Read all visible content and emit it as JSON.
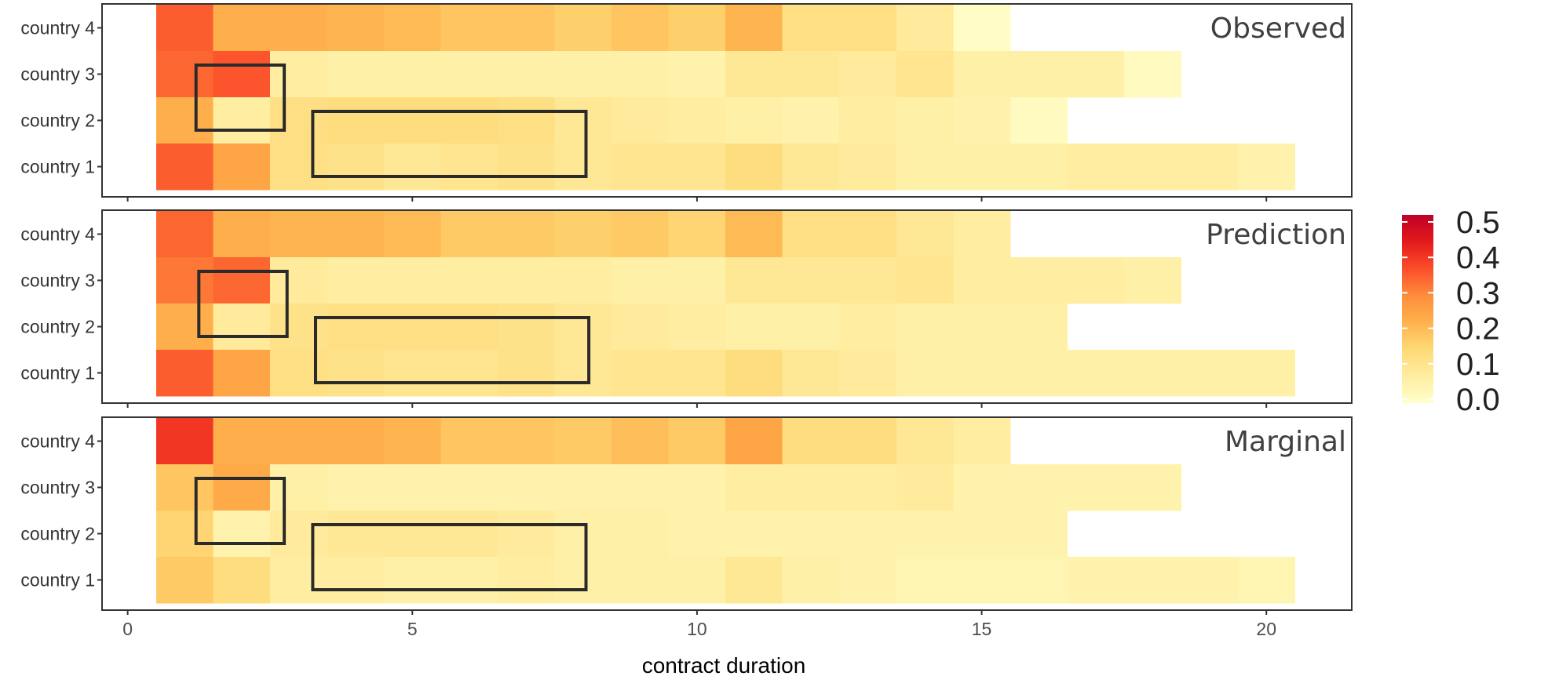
{
  "chart_data": {
    "type": "heatmap",
    "xlabel": "contract duration",
    "x_ticks": [
      0,
      5,
      10,
      15,
      20
    ],
    "xlim": [
      -0.45,
      21.5
    ],
    "y_categories": [
      "country 1",
      "country 2",
      "country 3",
      "country 4"
    ],
    "color_scale": {
      "palette": "YlOrRd",
      "min": 0.0,
      "max": 0.5,
      "ticks": [
        "0.0",
        "0.1",
        "0.2",
        "0.3",
        "0.4",
        "0.5"
      ],
      "stops": [
        "#ffffcc",
        "#ffeda0",
        "#fed976",
        "#feb24c",
        "#fd8d3c",
        "#fc4e2a",
        "#e31a1c",
        "#bd0026"
      ]
    },
    "panels": [
      {
        "title": "Observed",
        "rows": {
          "country 4": [
            0.34,
            0.22,
            0.22,
            0.21,
            0.2,
            0.18,
            0.18,
            0.16,
            0.18,
            0.16,
            0.21,
            0.12,
            0.12,
            0.08,
            0.01
          ],
          "country 3": [
            0.33,
            0.35,
            0.07,
            0.06,
            0.06,
            0.06,
            0.06,
            0.06,
            0.06,
            0.05,
            0.09,
            0.09,
            0.08,
            0.1,
            0.06,
            0.06,
            0.06,
            0.02
          ],
          "country 2": [
            0.22,
            0.07,
            0.12,
            0.13,
            0.13,
            0.13,
            0.12,
            0.09,
            0.08,
            0.07,
            0.06,
            0.05,
            0.07,
            0.06,
            0.05,
            0.02
          ],
          "country 1": [
            0.34,
            0.24,
            0.12,
            0.11,
            0.09,
            0.1,
            0.11,
            0.09,
            0.1,
            0.1,
            0.13,
            0.09,
            0.08,
            0.06,
            0.06,
            0.06,
            0.07,
            0.07,
            0.07,
            0.05
          ]
        },
        "boxes": [
          {
            "x": [
              1.2,
              2.75
            ],
            "rows": [
              "country 2",
              "country 3"
            ]
          },
          {
            "x": [
              3.25,
              8.05
            ],
            "rows": [
              "country 1",
              "country 2"
            ]
          }
        ]
      },
      {
        "title": "Prediction",
        "rows": {
          "country 4": [
            0.33,
            0.22,
            0.21,
            0.21,
            0.2,
            0.17,
            0.17,
            0.16,
            0.17,
            0.15,
            0.2,
            0.12,
            0.12,
            0.09,
            0.07
          ],
          "country 3": [
            0.31,
            0.33,
            0.08,
            0.07,
            0.07,
            0.07,
            0.07,
            0.07,
            0.06,
            0.06,
            0.09,
            0.09,
            0.09,
            0.1,
            0.07,
            0.07,
            0.07,
            0.06
          ],
          "country 2": [
            0.22,
            0.08,
            0.11,
            0.12,
            0.12,
            0.12,
            0.11,
            0.09,
            0.08,
            0.07,
            0.06,
            0.06,
            0.07,
            0.06,
            0.06,
            0.06
          ],
          "country 1": [
            0.34,
            0.24,
            0.12,
            0.11,
            0.1,
            0.1,
            0.11,
            0.09,
            0.1,
            0.1,
            0.13,
            0.09,
            0.08,
            0.06,
            0.06,
            0.06,
            0.06,
            0.06,
            0.06,
            0.06
          ]
        },
        "boxes": [
          {
            "x": [
              1.25,
              2.8
            ],
            "rows": [
              "country 2",
              "country 3"
            ]
          },
          {
            "x": [
              3.3,
              8.1
            ],
            "rows": [
              "country 1",
              "country 2"
            ]
          }
        ]
      },
      {
        "title": "Marginal",
        "rows": {
          "country 4": [
            0.39,
            0.22,
            0.22,
            0.22,
            0.21,
            0.18,
            0.18,
            0.17,
            0.19,
            0.17,
            0.24,
            0.13,
            0.13,
            0.09,
            0.07
          ],
          "country 3": [
            0.18,
            0.23,
            0.06,
            0.05,
            0.05,
            0.05,
            0.05,
            0.05,
            0.05,
            0.05,
            0.07,
            0.07,
            0.07,
            0.08,
            0.05,
            0.05,
            0.05,
            0.05
          ],
          "country 2": [
            0.15,
            0.05,
            0.08,
            0.09,
            0.09,
            0.09,
            0.08,
            0.06,
            0.06,
            0.05,
            0.05,
            0.05,
            0.05,
            0.05,
            0.05,
            0.05
          ],
          "country 1": [
            0.17,
            0.13,
            0.07,
            0.07,
            0.06,
            0.06,
            0.07,
            0.06,
            0.06,
            0.06,
            0.09,
            0.06,
            0.05,
            0.04,
            0.04,
            0.04,
            0.05,
            0.05,
            0.05,
            0.04
          ]
        },
        "boxes": [
          {
            "x": [
              1.2,
              2.75
            ],
            "rows": [
              "country 2",
              "country 3"
            ]
          },
          {
            "x": [
              3.25,
              8.05
            ],
            "rows": [
              "country 1",
              "country 2"
            ]
          }
        ]
      }
    ]
  }
}
